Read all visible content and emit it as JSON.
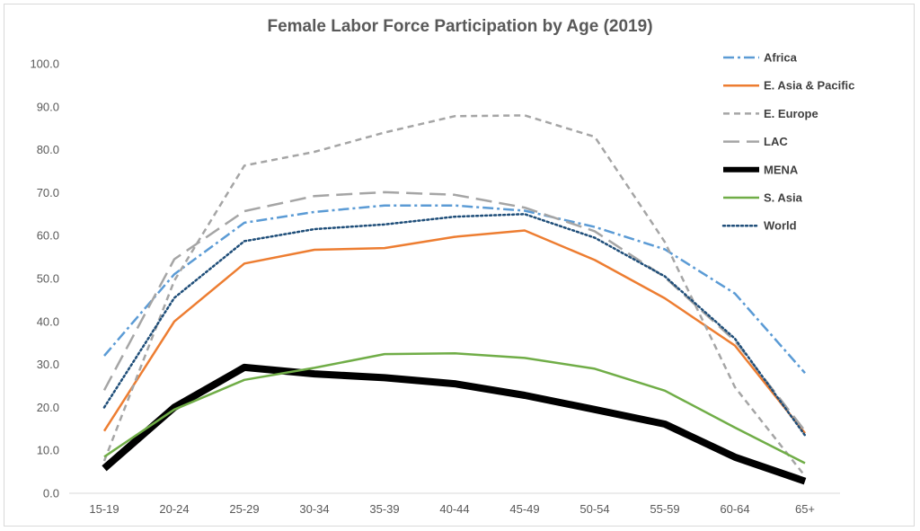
{
  "chart_data": {
    "type": "line",
    "title": "Female  Labor Force Participation by Age (2019)",
    "xlabel": "",
    "ylabel": "",
    "categories": [
      "15-19",
      "20-24",
      "25-29",
      "30-34",
      "35-39",
      "40-44",
      "45-49",
      "50-54",
      "55-59",
      "60-64",
      "65+"
    ],
    "ylim": [
      0,
      100
    ],
    "yticks": [
      "0.0",
      "10.0",
      "20.0",
      "30.0",
      "40.0",
      "50.0",
      "60.0",
      "70.0",
      "80.0",
      "90.0",
      "100.0"
    ],
    "grid": false,
    "legend_position": "right",
    "series": [
      {
        "name": "Africa",
        "color": "#5b9bd5",
        "dash": "dashdot",
        "width": 2.5,
        "values": [
          32.0,
          51.0,
          63.0,
          65.5,
          67.0,
          67.0,
          65.8,
          62.0,
          56.8,
          46.5,
          28.0
        ]
      },
      {
        "name": "E. Asia & Pacific",
        "color": "#ed7d31",
        "dash": "solid",
        "width": 2.5,
        "values": [
          14.5,
          40.0,
          53.5,
          56.7,
          57.1,
          59.7,
          61.2,
          54.3,
          45.4,
          34.4,
          14.0
        ]
      },
      {
        "name": "E. Europe",
        "color": "#a5a5a5",
        "dash": "dash",
        "width": 2.5,
        "values": [
          7.5,
          49.5,
          76.3,
          79.5,
          84.0,
          87.8,
          88.0,
          83.0,
          58.5,
          24.7,
          4.0
        ]
      },
      {
        "name": "LAC",
        "color": "#a5a5a5",
        "dash": "longdash",
        "width": 2.5,
        "values": [
          24.0,
          54.5,
          65.7,
          69.2,
          70.1,
          69.5,
          66.5,
          61.0,
          50.3,
          35.5,
          14.5
        ]
      },
      {
        "name": "MENA",
        "color": "#000000",
        "dash": "solid",
        "width": 8,
        "values": [
          5.8,
          20.0,
          29.3,
          27.8,
          26.9,
          25.5,
          22.8,
          19.5,
          16.1,
          8.4,
          2.8
        ]
      },
      {
        "name": "S. Asia",
        "color": "#70ad47",
        "dash": "solid",
        "width": 2.5,
        "values": [
          8.5,
          19.5,
          26.4,
          29.2,
          32.4,
          32.6,
          31.5,
          29.0,
          23.9,
          15.3,
          7.0
        ]
      },
      {
        "name": "World",
        "color": "#1f4e79",
        "dash": "dot",
        "width": 2.5,
        "values": [
          20.0,
          45.5,
          58.7,
          61.5,
          62.6,
          64.4,
          65.0,
          59.5,
          50.5,
          36.0,
          13.5
        ]
      }
    ]
  }
}
